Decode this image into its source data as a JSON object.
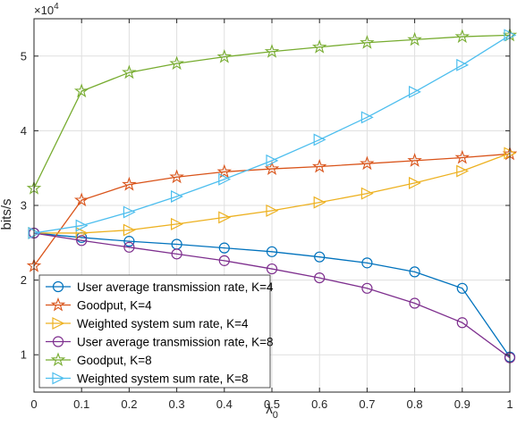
{
  "chart_data": {
    "type": "line",
    "xlabel": "λ",
    "xlabel_sub": "0",
    "ylabel": "bits/s",
    "exponent_base": "×10",
    "exponent_power": "4",
    "x": [
      0,
      0.1,
      0.2,
      0.3,
      0.4,
      0.5,
      0.6,
      0.7,
      0.8,
      0.9,
      1
    ],
    "xlim": [
      0,
      1
    ],
    "ylim": [
      0.5,
      5.5
    ],
    "x_ticks": [
      "0",
      "0.1",
      "0.2",
      "0.3",
      "0.4",
      "0.5",
      "0.6",
      "0.7",
      "0.8",
      "0.9",
      "1"
    ],
    "y_ticks": [
      {
        "value": 1,
        "label": "1"
      },
      {
        "value": 2,
        "label": "2"
      },
      {
        "value": 3,
        "label": "3"
      },
      {
        "value": 4,
        "label": "4"
      },
      {
        "value": 5,
        "label": "5"
      }
    ],
    "grid": true,
    "legend_position": "bottom-left",
    "series": [
      {
        "name": "User average transmission rate, K=4",
        "color": "#0072BD",
        "marker": "circle",
        "values": [
          2.63,
          2.57,
          2.52,
          2.48,
          2.43,
          2.38,
          2.31,
          2.23,
          2.11,
          1.89,
          0.97
        ]
      },
      {
        "name": "Goodput, K=4",
        "color": "#D95319",
        "marker": "star",
        "values": [
          2.19,
          3.07,
          3.28,
          3.38,
          3.45,
          3.49,
          3.52,
          3.56,
          3.6,
          3.64,
          3.69
        ]
      },
      {
        "name": "Weighted system sum rate, K=4",
        "color": "#EDB120",
        "marker": "triangle-right",
        "values": [
          2.63,
          2.63,
          2.67,
          2.75,
          2.84,
          2.93,
          3.04,
          3.16,
          3.3,
          3.46,
          3.7
        ]
      },
      {
        "name": "User average transmission rate, K=8",
        "color": "#7E2F8E",
        "marker": "circle",
        "values": [
          2.63,
          2.53,
          2.44,
          2.35,
          2.26,
          2.15,
          2.03,
          1.89,
          1.69,
          1.43,
          0.96
        ]
      },
      {
        "name": "Goodput, K=8",
        "color": "#77AC30",
        "marker": "star",
        "values": [
          3.23,
          4.53,
          4.78,
          4.9,
          4.99,
          5.06,
          5.12,
          5.18,
          5.22,
          5.26,
          5.28
        ]
      },
      {
        "name": "Weighted system sum rate, K=8",
        "color": "#4DBEEE",
        "marker": "triangle-right",
        "values": [
          2.63,
          2.73,
          2.91,
          3.12,
          3.35,
          3.6,
          3.88,
          4.18,
          4.52,
          4.88,
          5.28
        ]
      }
    ]
  }
}
